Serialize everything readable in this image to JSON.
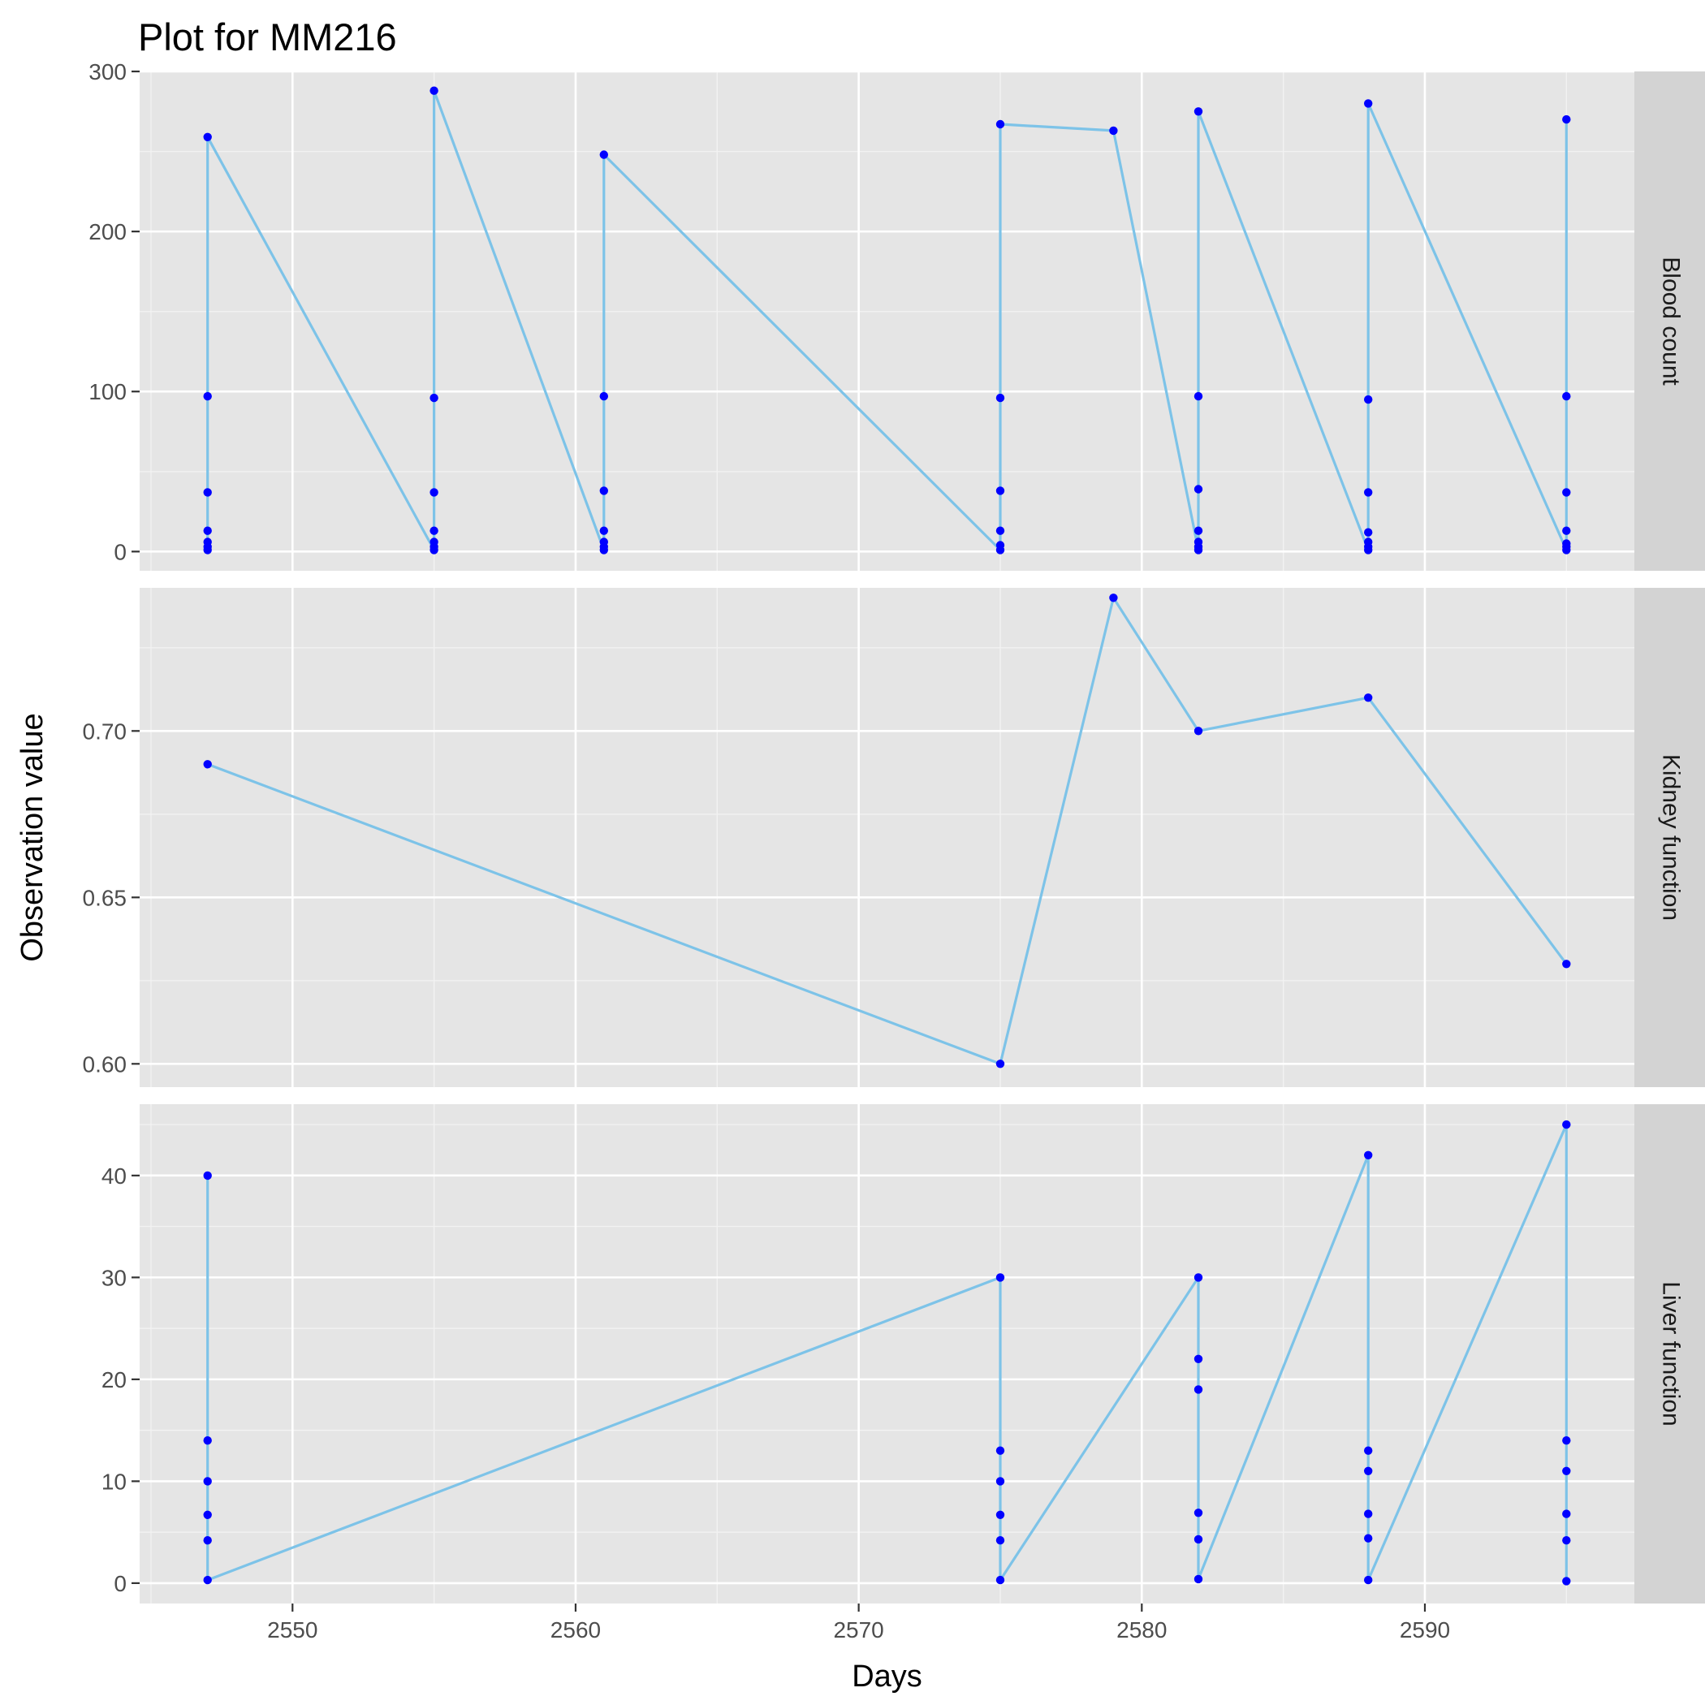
{
  "chart_data": {
    "type": "line",
    "title": "Plot for MM216",
    "xlabel": "Days",
    "ylabel": "Observation value",
    "xlim": [
      2544.6,
      2597.4
    ],
    "x_ticks": [
      2550,
      2560,
      2570,
      2580,
      2590
    ],
    "x_tick_labels": [
      "2550",
      "2560",
      "2570",
      "2580",
      "2590"
    ],
    "grid": true,
    "line_color": "#7dc3e8",
    "point_color": "#0000ff",
    "panel_background": "#e5e5e5",
    "strip_background": "#d3d3d3",
    "facets": [
      {
        "label": "Blood count",
        "ylim": [
          -12,
          300
        ],
        "y_ticks": [
          0,
          100,
          200,
          300
        ],
        "y_tick_labels": [
          "0",
          "100",
          "200",
          "300"
        ],
        "x": [
          2547,
          2547,
          2547,
          2547,
          2547,
          2547,
          2547,
          2555,
          2555,
          2555,
          2555,
          2555,
          2555,
          2555,
          2561,
          2561,
          2561,
          2561,
          2561,
          2561,
          2561,
          2575,
          2575,
          2575,
          2575,
          2575,
          2575,
          2579,
          2582,
          2582,
          2582,
          2582,
          2582,
          2582,
          2582,
          2588,
          2588,
          2588,
          2588,
          2588,
          2588,
          2588,
          2595,
          2595,
          2595,
          2595,
          2595,
          2595,
          2595
        ],
        "values": [
          1,
          3,
          6,
          13,
          37,
          97,
          259,
          1,
          3,
          6,
          13,
          37,
          96,
          288,
          1,
          3,
          6,
          13,
          38,
          97,
          248,
          1,
          4,
          13,
          38,
          96,
          267,
          263,
          1,
          3,
          6,
          13,
          39,
          97,
          275,
          1,
          3,
          6,
          12,
          37,
          95,
          280,
          1,
          3,
          5,
          13,
          37,
          97,
          270
        ]
      },
      {
        "label": "Kidney function",
        "ylim": [
          0.593,
          0.743
        ],
        "y_ticks": [
          0.6,
          0.65,
          0.7
        ],
        "y_tick_labels": [
          "0.60",
          "0.65",
          "0.70"
        ],
        "x": [
          2547,
          2575,
          2579,
          2582,
          2588,
          2595
        ],
        "values": [
          0.69,
          0.6,
          0.74,
          0.7,
          0.71,
          0.63
        ]
      },
      {
        "label": "Liver function",
        "ylim": [
          -2,
          47
        ],
        "y_ticks": [
          0,
          10,
          20,
          30,
          40
        ],
        "y_tick_labels": [
          "0",
          "10",
          "20",
          "30",
          "40"
        ],
        "x": [
          2547,
          2547,
          2547,
          2547,
          2547,
          2547,
          2575,
          2575,
          2575,
          2575,
          2575,
          2575,
          2582,
          2582,
          2582,
          2582,
          2582,
          2582,
          2588,
          2588,
          2588,
          2588,
          2588,
          2588,
          2595,
          2595,
          2595,
          2595,
          2595,
          2595
        ],
        "values": [
          40,
          14,
          10,
          6.7,
          4.2,
          0.3,
          30,
          13,
          10,
          6.7,
          4.2,
          0.3,
          30,
          22,
          19,
          6.9,
          4.3,
          0.4,
          42,
          13,
          11,
          6.8,
          4.4,
          0.3,
          45,
          14,
          11,
          6.8,
          4.2,
          0.2
        ]
      }
    ]
  }
}
